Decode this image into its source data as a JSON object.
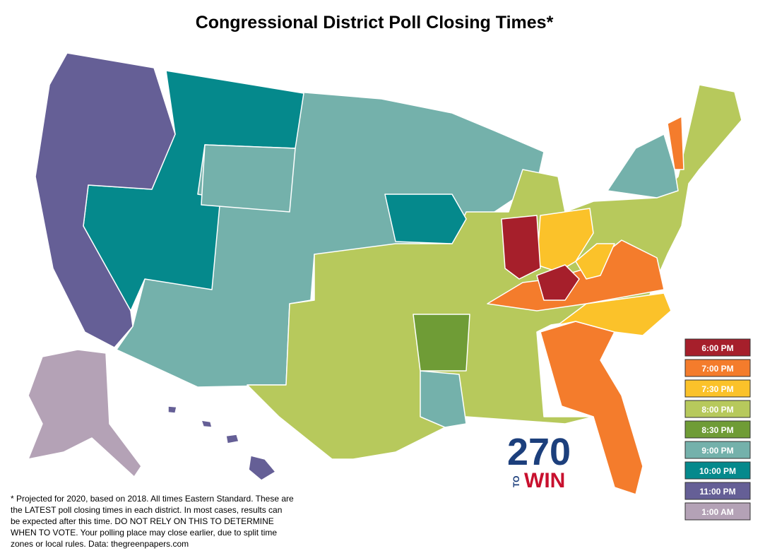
{
  "header": {
    "title": "Congressional District Poll Closing Times*"
  },
  "legend": [
    {
      "label": "6:00 PM",
      "color": "#a61f2b"
    },
    {
      "label": "7:00 PM",
      "color": "#f47c2c"
    },
    {
      "label": "7:30 PM",
      "color": "#fbc22a"
    },
    {
      "label": "8:00 PM",
      "color": "#b7c95c"
    },
    {
      "label": "8:30 PM",
      "color": "#6f9c36"
    },
    {
      "label": "9:00 PM",
      "color": "#74b1ab"
    },
    {
      "label": "10:00 PM",
      "color": "#05898c"
    },
    {
      "label": "11:00 PM",
      "color": "#655f96"
    },
    {
      "label": "1:00 AM",
      "color": "#b4a2b6"
    }
  ],
  "logo": {
    "number": "270",
    "to": "TO",
    "win": "WIN"
  },
  "footnote": [
    "* Projected for 2020, based on 2018. All times Eastern Standard. These are",
    "the LATEST poll closing times in each district. In most cases, results can",
    "be expected after this time. DO NOT RELY ON THIS TO DETERMINE",
    "WHEN TO VOTE. Your polling place may close earlier, due to split time",
    "zones or local rules. Data: thegreenpapers.com"
  ]
}
